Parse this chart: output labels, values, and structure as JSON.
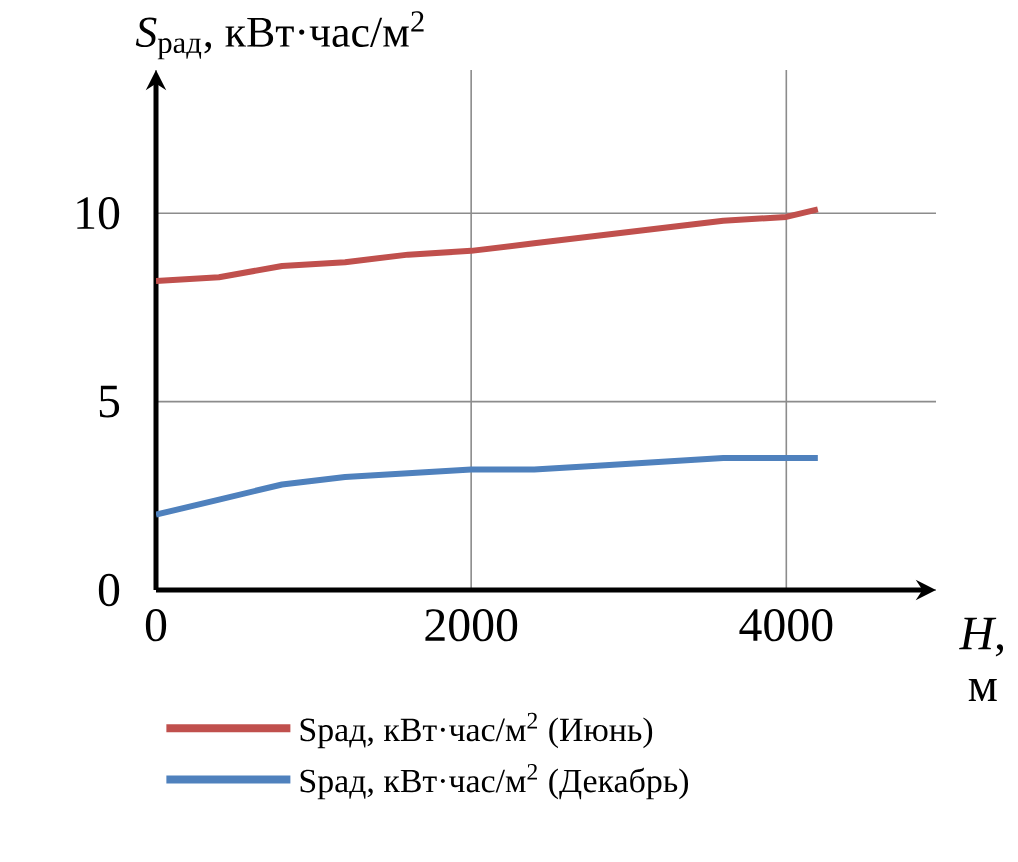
{
  "chart_data": {
    "type": "line",
    "xlabel": "*H*, м",
    "ylabel": "*S*$_{рад}$, кВт·час/м$^{2}$",
    "x": [
      0,
      400,
      800,
      1200,
      1600,
      2000,
      2400,
      2800,
      3200,
      3600,
      4000,
      4200
    ],
    "series": [
      {
        "name": "Sрад, кВт·час/м$^{2}$ (Июнь)",
        "color": "#c0504d",
        "values": [
          8.2,
          8.3,
          8.6,
          8.7,
          8.9,
          9.0,
          9.2,
          9.4,
          9.6,
          9.8,
          9.9,
          10.1
        ]
      },
      {
        "name": "Sрад, кВт·час/м$^{2}$ (Декабрь)",
        "color": "#4f81bd",
        "values": [
          2.0,
          2.4,
          2.8,
          3.0,
          3.1,
          3.2,
          3.2,
          3.3,
          3.4,
          3.5,
          3.5,
          3.5
        ]
      }
    ],
    "xlim": [
      0,
      4950
    ],
    "ylim": [
      0,
      13.8
    ],
    "xticks": [
      0,
      2000,
      4000
    ],
    "yticks": [
      0,
      5,
      10
    ],
    "grid": true,
    "legend": "bottom"
  }
}
